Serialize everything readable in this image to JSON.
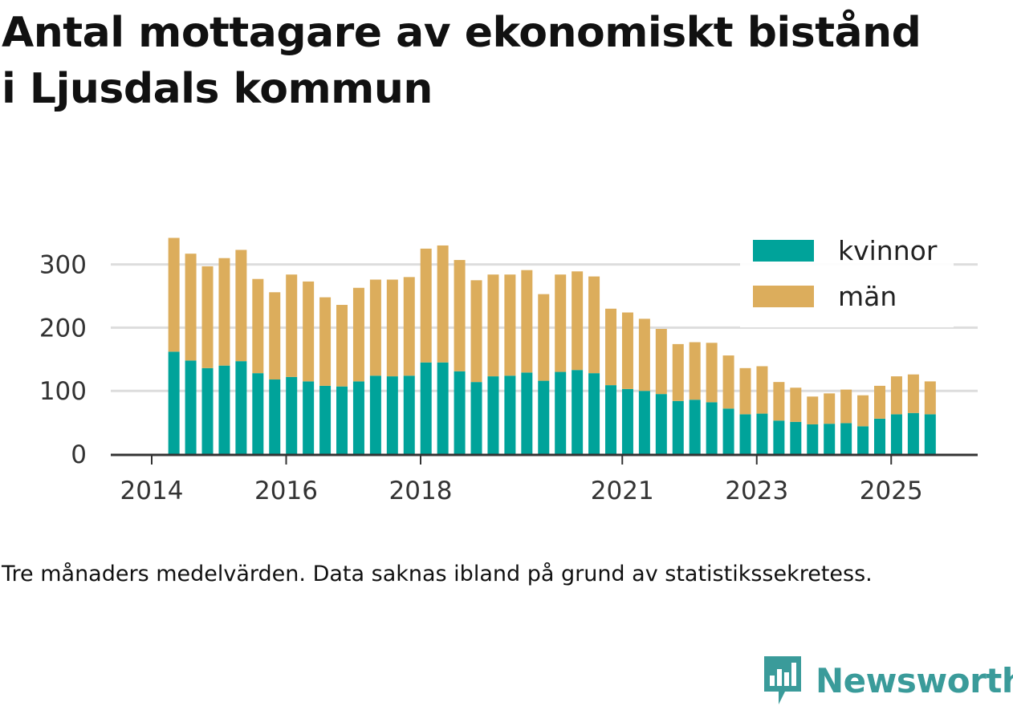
{
  "title_line1": "Antal mottagare av ekonomiskt bistånd",
  "title_line2": "i Ljusdals kommun",
  "note": "Tre månaders medelvärden. Data saknas ibland på grund av statistikssekretess.",
  "brand": {
    "name": "Newsworthy",
    "icon": "newsworthy-logo-icon",
    "color": "#3a9b9a"
  },
  "chart_data": {
    "type": "bar",
    "stacked": true,
    "title": "Antal mottagare av ekonomiskt bistånd i Ljusdals kommun",
    "xlabel": "",
    "ylabel": "",
    "ylim": [
      0,
      350
    ],
    "yticks": [
      0,
      100,
      200,
      300
    ],
    "xticks": [
      {
        "label": "2014",
        "x": 2014.0
      },
      {
        "label": "2016",
        "x": 2016.0
      },
      {
        "label": "2018",
        "x": 2018.0
      },
      {
        "label": "2021",
        "x": 2021.0
      },
      {
        "label": "2023",
        "x": 2023.0
      },
      {
        "label": "2025",
        "x": 2025.0
      }
    ],
    "grid": true,
    "legend_position": "top-right",
    "colors": {
      "kvinnor": "#00a39a",
      "män": "#dcad5c",
      "grid": "#dddddd",
      "axis": "#333333"
    },
    "x": [
      2014.33,
      2014.58,
      2014.83,
      2015.08,
      2015.33,
      2015.58,
      2015.83,
      2016.08,
      2016.33,
      2016.58,
      2016.83,
      2017.08,
      2017.33,
      2017.58,
      2017.83,
      2018.08,
      2018.33,
      2018.58,
      2018.83,
      2019.08,
      2019.33,
      2019.58,
      2019.83,
      2020.08,
      2020.33,
      2020.58,
      2020.83,
      2021.08,
      2021.33,
      2021.58,
      2021.83,
      2022.08,
      2022.33,
      2022.58,
      2022.83,
      2023.08,
      2023.33,
      2023.58,
      2023.83,
      2024.08,
      2024.33,
      2024.58,
      2024.83,
      2025.08,
      2025.33,
      2025.58
    ],
    "series": [
      {
        "name": "kvinnor",
        "values": [
          162,
          148,
          136,
          140,
          147,
          128,
          118,
          122,
          115,
          108,
          107,
          115,
          124,
          123,
          124,
          145,
          145,
          131,
          114,
          123,
          124,
          129,
          116,
          130,
          133,
          128,
          109,
          103,
          100,
          95,
          84,
          86,
          82,
          72,
          63,
          64,
          53,
          51,
          47,
          48,
          49,
          44,
          56,
          63,
          65,
          63
        ]
      },
      {
        "name": "män",
        "values": [
          180,
          169,
          161,
          170,
          176,
          149,
          138,
          162,
          158,
          140,
          129,
          148,
          152,
          153,
          156,
          180,
          185,
          176,
          161,
          161,
          160,
          162,
          137,
          154,
          156,
          153,
          121,
          121,
          114,
          103,
          90,
          91,
          94,
          84,
          73,
          75,
          61,
          54,
          44,
          48,
          53,
          49,
          52,
          60,
          61,
          52
        ]
      }
    ]
  }
}
